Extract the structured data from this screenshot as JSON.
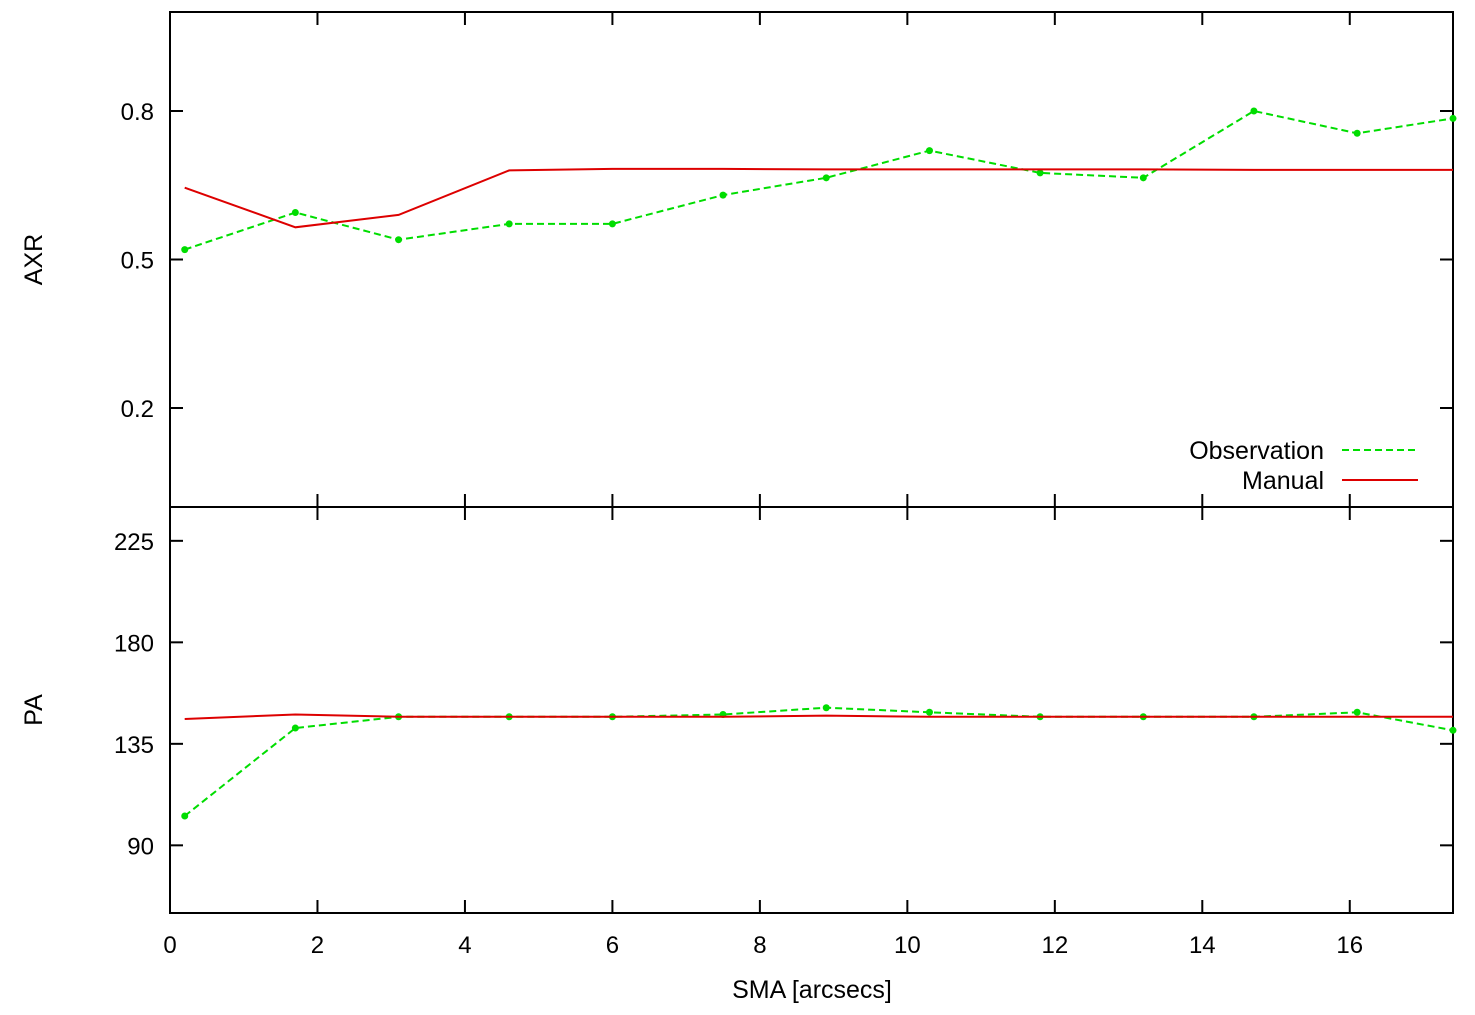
{
  "chart_data": {
    "type": "line",
    "x_axis": {
      "label": "SMA [arcsecs]",
      "range": [
        0,
        17.4
      ],
      "ticks": [
        0,
        2,
        4,
        6,
        8,
        10,
        12,
        14,
        16
      ],
      "tick_labels": [
        "0",
        "2",
        "4",
        "6",
        "8",
        "10",
        "12",
        "14",
        "16"
      ]
    },
    "panels": [
      {
        "id": "axr",
        "ylabel": "AXR",
        "ylim": [
          0.0,
          1.0
        ],
        "yticks": [
          0.2,
          0.5,
          0.8
        ],
        "ytick_labels": [
          "0.2",
          "0.5",
          "0.8"
        ],
        "legend": {
          "position": "bottom-right",
          "entries": [
            {
              "label": "Observation",
              "series": "Observation"
            },
            {
              "label": "Manual",
              "series": "Manual"
            }
          ]
        },
        "series": [
          {
            "name": "Observation",
            "color": "#00dd00",
            "style": "dashed",
            "markers": true,
            "x": [
              0.2,
              1.7,
              3.1,
              4.6,
              6.0,
              7.5,
              8.9,
              10.3,
              11.8,
              13.2,
              14.7,
              16.1,
              17.4
            ],
            "y": [
              0.52,
              0.595,
              0.54,
              0.572,
              0.572,
              0.63,
              0.665,
              0.72,
              0.675,
              0.665,
              0.8,
              0.755,
              0.785
            ]
          },
          {
            "name": "Manual",
            "color": "#dd0000",
            "style": "solid",
            "markers": false,
            "x": [
              0.2,
              1.7,
              3.1,
              4.6,
              6.0,
              7.5,
              8.9,
              10.3,
              11.8,
              13.2,
              14.7,
              16.1,
              17.4
            ],
            "y": [
              0.645,
              0.565,
              0.59,
              0.68,
              0.683,
              0.683,
              0.682,
              0.682,
              0.682,
              0.682,
              0.681,
              0.681,
              0.681
            ]
          }
        ]
      },
      {
        "id": "pa",
        "ylabel": "PA",
        "ylim": [
          60,
          240
        ],
        "yticks": [
          90,
          135,
          180,
          225
        ],
        "ytick_labels": [
          "90",
          "135",
          "180",
          "225"
        ],
        "series": [
          {
            "name": "Observation",
            "color": "#00dd00",
            "style": "dashed",
            "markers": true,
            "x": [
              0.2,
              1.7,
              3.1,
              4.6,
              6.0,
              7.5,
              8.9,
              10.3,
              11.8,
              13.2,
              14.7,
              16.1,
              17.4
            ],
            "y": [
              103,
              142,
              147,
              147,
              147,
              148,
              151,
              149,
              147,
              147,
              147,
              149,
              141
            ]
          },
          {
            "name": "Manual",
            "color": "#dd0000",
            "style": "solid",
            "markers": false,
            "x": [
              0.2,
              1.7,
              3.1,
              4.6,
              6.0,
              7.5,
              8.9,
              10.3,
              11.8,
              13.2,
              14.7,
              16.1,
              17.4
            ],
            "y": [
              146,
              148,
              147,
              147,
              147,
              147,
              147.5,
              147,
              147,
              147,
              147,
              147,
              147
            ]
          }
        ]
      }
    ]
  }
}
